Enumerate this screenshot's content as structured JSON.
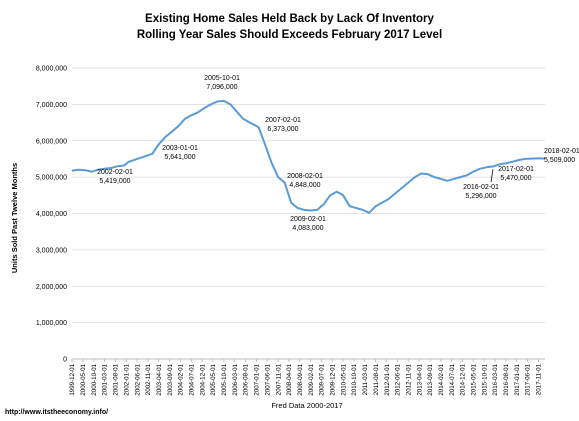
{
  "chart_data": {
    "type": "line",
    "title": "Existing Home Sales Held Back by Lack Of Inventory",
    "subtitle": "Rolling Year Sales Should Exceeds February 2017 Level",
    "xlabel": "Fred Data 2000-2017",
    "ylabel": "Units Sold Past Twelve Months",
    "ylim": [
      0,
      8000000
    ],
    "yticks": [
      "0",
      "1,000,000",
      "2,000,000",
      "3,000,000",
      "4,000,000",
      "5,000,000",
      "6,000,000",
      "7,000,000",
      "8,000,000"
    ],
    "xticks": [
      "1999-12-01",
      "2000-05-01",
      "2000-10-01",
      "2001-03-01",
      "2001-08-01",
      "2002-01-01",
      "2002-06-01",
      "2002-11-01",
      "2003-04-01",
      "2003-09-01",
      "2004-02-01",
      "2004-07-01",
      "2004-12-01",
      "2005-05-01",
      "2005-10-01",
      "2006-03-01",
      "2006-08-01",
      "2007-01-01",
      "2007-06-01",
      "2007-11-01",
      "2008-04-01",
      "2008-09-01",
      "2009-02-01",
      "2009-07-01",
      "2009-12-01",
      "2010-05-01",
      "2010-10-01",
      "2011-03-01",
      "2011-08-01",
      "2012-01-01",
      "2012-06-01",
      "2012-11-01",
      "2013-04-01",
      "2013-09-01",
      "2014-02-01",
      "2014-07-01",
      "2014-12-01",
      "2015-05-01",
      "2015-10-01",
      "2016-03-01",
      "2016-08-01",
      "2017-01-01",
      "2017-06-01",
      "2017-11-01"
    ],
    "grid": true,
    "legend": "none",
    "series": [
      {
        "color": "#5b9bd5",
        "x": [
          "1999-12-01",
          "2000-03-01",
          "2000-06-01",
          "2000-09-01",
          "2000-12-01",
          "2001-03-01",
          "2001-06-01",
          "2001-09-01",
          "2001-12-01",
          "2002-02-01",
          "2002-06-01",
          "2002-09-01",
          "2002-12-01",
          "2003-01-01",
          "2003-04-01",
          "2003-07-01",
          "2003-10-01",
          "2004-01-01",
          "2004-04-01",
          "2004-07-01",
          "2004-10-01",
          "2005-01-01",
          "2005-04-01",
          "2005-07-01",
          "2005-10-01",
          "2006-01-01",
          "2006-04-01",
          "2006-07-01",
          "2006-10-01",
          "2007-02-01",
          "2007-05-01",
          "2007-08-01",
          "2007-11-01",
          "2008-02-01",
          "2008-05-01",
          "2008-08-01",
          "2008-11-01",
          "2009-02-01",
          "2009-05-01",
          "2009-08-01",
          "2009-11-01",
          "2010-02-01",
          "2010-05-01",
          "2010-08-01",
          "2010-11-01",
          "2011-02-01",
          "2011-05-01",
          "2011-08-01",
          "2011-11-01",
          "2012-02-01",
          "2012-05-01",
          "2012-08-01",
          "2012-11-01",
          "2013-02-01",
          "2013-05-01",
          "2013-08-01",
          "2013-11-01",
          "2014-02-01",
          "2014-05-01",
          "2014-08-01",
          "2014-11-01",
          "2015-02-01",
          "2015-05-01",
          "2015-08-01",
          "2015-11-01",
          "2016-02-01",
          "2016-05-01",
          "2016-08-01",
          "2016-11-01",
          "2017-02-01",
          "2017-05-01",
          "2017-08-01",
          "2017-11-01",
          "2018-02-01"
        ],
        "values": [
          5180000,
          5200000,
          5190000,
          5150000,
          5200000,
          5230000,
          5250000,
          5300000,
          5320000,
          5419000,
          5500000,
          5560000,
          5620000,
          5641000,
          5900000,
          6100000,
          6250000,
          6400000,
          6600000,
          6700000,
          6780000,
          6900000,
          7000000,
          7080000,
          7096000,
          7000000,
          6800000,
          6600000,
          6500000,
          6373000,
          5900000,
          5400000,
          5000000,
          4848000,
          4300000,
          4150000,
          4100000,
          4083000,
          4100000,
          4250000,
          4500000,
          4600000,
          4500000,
          4200000,
          4150000,
          4100000,
          4020000,
          4200000,
          4300000,
          4400000,
          4550000,
          4700000,
          4850000,
          5000000,
          5100000,
          5080000,
          5000000,
          4950000,
          4900000,
          4950000,
          5000000,
          5050000,
          5150000,
          5230000,
          5270000,
          5296000,
          5350000,
          5380000,
          5420000,
          5470000,
          5500000,
          5510000,
          5520000,
          5509000
        ]
      }
    ],
    "annotations": [
      {
        "date": "2002-02-01",
        "value": "5,419,000"
      },
      {
        "date": "2003-01-01",
        "value": "5,641,000"
      },
      {
        "date": "2005-10-01",
        "value": "7,096,000"
      },
      {
        "date": "2007-02-01",
        "value": "6,373,000"
      },
      {
        "date": "2008-02-01",
        "value": "4,848,000"
      },
      {
        "date": "2009-02-01",
        "value": "4,083,000"
      },
      {
        "date": "2016-02-01",
        "value": "5,296,000"
      },
      {
        "date": "2017-02-01",
        "value": "5,470,000"
      },
      {
        "date": "2018-02-01",
        "value": "5,509,000"
      }
    ]
  },
  "footer": {
    "source_url": "http://www.itstheeconomy.info/"
  }
}
